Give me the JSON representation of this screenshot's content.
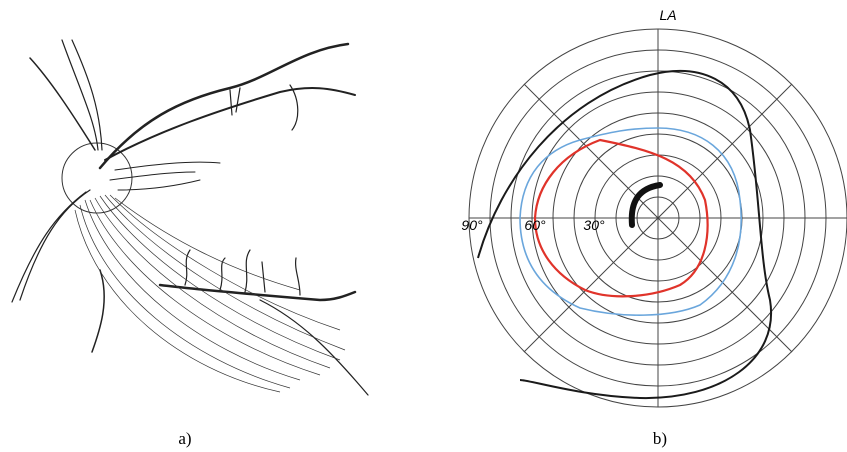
{
  "panels": [
    {
      "label": "a)"
    },
    {
      "label": "b)"
    }
  ],
  "perimetry": {
    "title": "LA",
    "angle_labels": [
      "90°",
      "60°",
      "30°"
    ]
  }
}
